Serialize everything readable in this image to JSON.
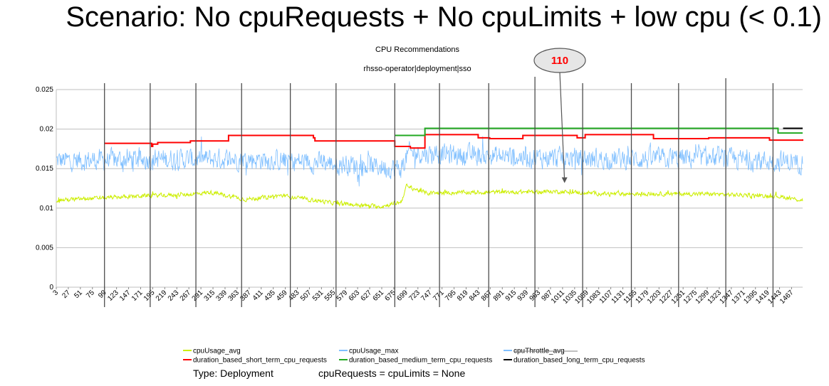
{
  "headline": "Scenario: No cpuRequests + No cpuLimits + low cpu (< 0.1)",
  "footer": {
    "type_text": "Type: Deployment",
    "cpu_text": "cpuRequests = cpuLimits = None"
  },
  "callout": {
    "text": "110",
    "color": "#ff0000",
    "x": 1015,
    "y": 0.0121
  },
  "chart_data": {
    "type": "line",
    "title": "CPU Recommendations",
    "subtitle": "rhsso-operator|deployment|sso",
    "ylabel": "",
    "xlabel": "",
    "ylim": [
      0,
      0.025
    ],
    "xlim": [
      3,
      1489
    ],
    "y_ticks": [
      0,
      0.005,
      0.01,
      0.015,
      0.02,
      0.025
    ],
    "y_tick_labels": [
      "0",
      "0.005",
      "0.01",
      "0.015",
      "0.02",
      "0.025"
    ],
    "x_tick_labels": [
      "3",
      "27",
      "51",
      "75",
      "99",
      "123",
      "147",
      "171",
      "195",
      "219",
      "243",
      "267",
      "291",
      "315",
      "339",
      "363",
      "387",
      "411",
      "435",
      "459",
      "483",
      "507",
      "531",
      "555",
      "579",
      "603",
      "627",
      "651",
      "675",
      "699",
      "723",
      "747",
      "771",
      "795",
      "819",
      "843",
      "867",
      "891",
      "915",
      "939",
      "963",
      "987",
      "1011",
      "1035",
      "1059",
      "1083",
      "1107",
      "1131",
      "1155",
      "1179",
      "1203",
      "1227",
      "1251",
      "1275",
      "1299",
      "1323",
      "1347",
      "1371",
      "1395",
      "1419",
      "1443",
      "1467"
    ],
    "grid": true,
    "legend_position": "bottom",
    "day_boundaries_x": [
      99,
      190,
      281,
      372,
      469,
      560,
      677,
      766,
      864,
      956,
      1051,
      1148,
      1242,
      1336,
      1430
    ],
    "series": [
      {
        "name": "cpuUsage_avg",
        "color": "#ccee00",
        "generator": "noise",
        "segments": [
          [
            3,
            0.011
          ],
          [
            100,
            0.0113
          ],
          [
            190,
            0.0116
          ],
          [
            260,
            0.0117
          ],
          [
            310,
            0.012
          ],
          [
            380,
            0.0111
          ],
          [
            450,
            0.0116
          ],
          [
            560,
            0.0106
          ],
          [
            650,
            0.0102
          ],
          [
            690,
            0.0108
          ],
          [
            700,
            0.0128
          ],
          [
            740,
            0.0119
          ],
          [
            850,
            0.012
          ],
          [
            1000,
            0.0121
          ],
          [
            1100,
            0.0118
          ],
          [
            1200,
            0.0118
          ],
          [
            1300,
            0.0118
          ],
          [
            1440,
            0.0115
          ],
          [
            1489,
            0.011
          ]
        ],
        "amplitude": 0.00035
      },
      {
        "name": "cpuUsage_max",
        "color": "#7fbfff",
        "generator": "noise",
        "segments": [
          [
            3,
            0.016
          ],
          [
            200,
            0.0162
          ],
          [
            400,
            0.0162
          ],
          [
            600,
            0.0155
          ],
          [
            690,
            0.015
          ],
          [
            705,
            0.017
          ],
          [
            900,
            0.0165
          ],
          [
            1100,
            0.0162
          ],
          [
            1300,
            0.0163
          ],
          [
            1489,
            0.0158
          ]
        ],
        "amplitude": 0.0018
      },
      {
        "name": "cpuThrottle_avg",
        "color": "#7f7f7f",
        "generator": "none",
        "points": []
      },
      {
        "name": "duration_based_short_term_cpu_requests",
        "color": "#ff0000",
        "generator": "step",
        "points": [
          [
            99,
            0.0182
          ],
          [
            190,
            0.0182
          ],
          [
            193,
            0.0178
          ],
          [
            195,
            0.0181
          ],
          [
            205,
            0.0183
          ],
          [
            270,
            0.0185
          ],
          [
            346,
            0.0192
          ],
          [
            515,
            0.0189
          ],
          [
            518,
            0.0185
          ],
          [
            677,
            0.0178
          ],
          [
            708,
            0.0176
          ],
          [
            737,
            0.0176
          ],
          [
            737,
            0.0193
          ],
          [
            843,
            0.0193
          ],
          [
            843,
            0.0189
          ],
          [
            866,
            0.0188
          ],
          [
            932,
            0.0192
          ],
          [
            1040,
            0.0189
          ],
          [
            1056,
            0.0193
          ],
          [
            1192,
            0.0188
          ],
          [
            1302,
            0.0189
          ],
          [
            1423,
            0.0186
          ],
          [
            1489,
            0.0187
          ]
        ]
      },
      {
        "name": "duration_based_medium_term_cpu_requests",
        "color": "#22aa22",
        "generator": "step",
        "points": [
          [
            677,
            0.0192
          ],
          [
            737,
            0.0192
          ],
          [
            737,
            0.0201
          ],
          [
            1430,
            0.0201
          ],
          [
            1440,
            0.0195
          ],
          [
            1489,
            0.0195
          ]
        ]
      },
      {
        "name": "duration_based_long_term_cpu_requests",
        "color": "#000000",
        "generator": "step",
        "points": [
          [
            1450,
            0.0201
          ],
          [
            1489,
            0.0201
          ]
        ]
      }
    ]
  }
}
